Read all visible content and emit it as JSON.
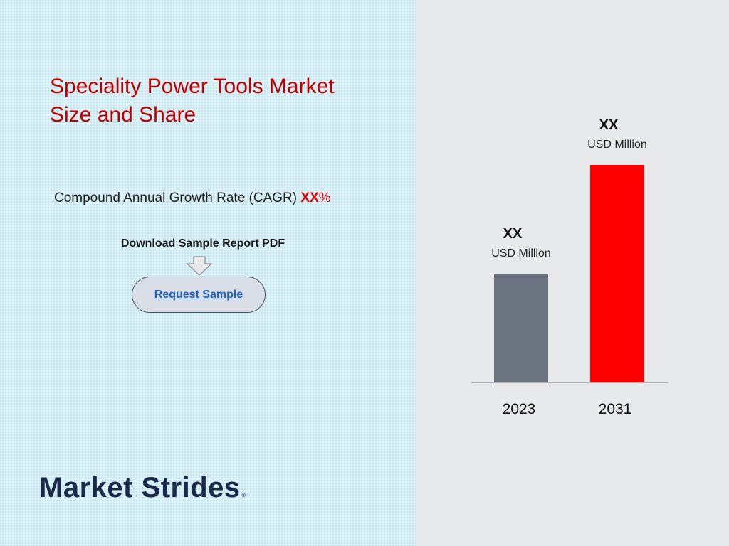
{
  "title": "Speciality Power Tools Market Size and Share",
  "cagr": {
    "label": "Compound Annual Growth Rate (CAGR)",
    "value": "XX",
    "suffix": "%"
  },
  "download": {
    "label": "Download Sample Report PDF",
    "button_label": "Request Sample"
  },
  "logo": {
    "text": "Market Strides",
    "mark": "®"
  },
  "colors": {
    "title": "#c00000",
    "bar_2023": "#6b7280",
    "bar_2031": "#ff0000"
  },
  "chart_data": {
    "type": "bar",
    "categories": [
      "2023",
      "2031"
    ],
    "values": [
      1.0,
      2.0
    ],
    "data_labels": [
      {
        "value": "XX",
        "unit": "USD Million"
      },
      {
        "value": "XX",
        "unit": "USD Million"
      }
    ],
    "bar_colors": [
      "#6b7280",
      "#ff0000"
    ],
    "title": "",
    "xlabel": "",
    "ylabel": "",
    "ylim": [
      0,
      2.0
    ],
    "grid": false,
    "legend": "none"
  }
}
